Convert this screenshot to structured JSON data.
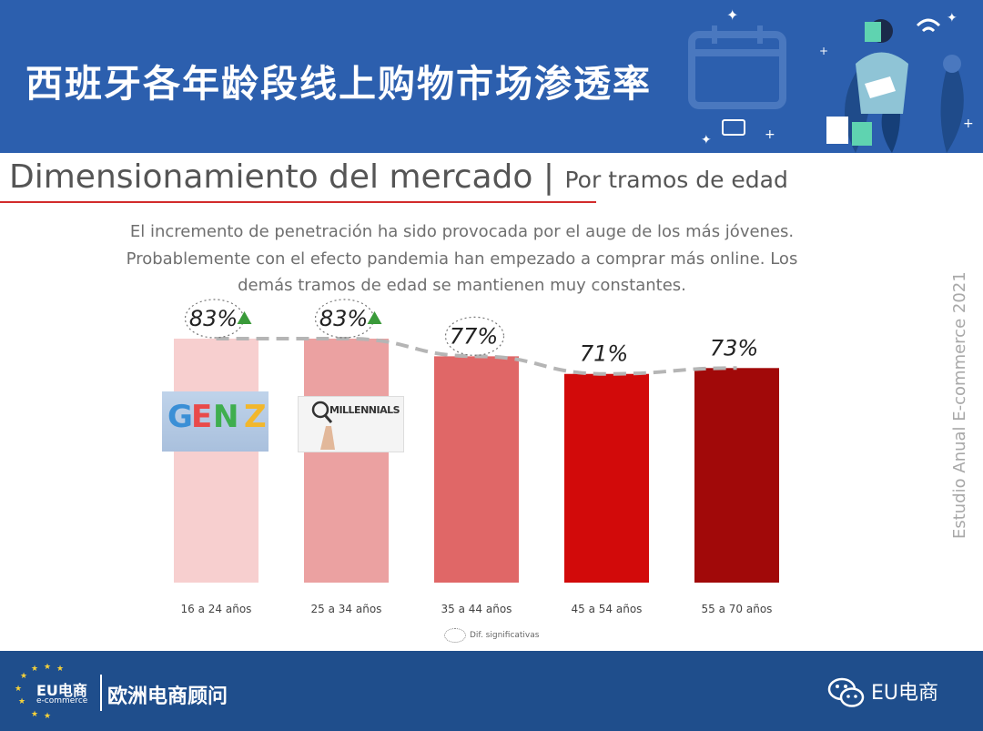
{
  "header": {
    "title": "西班牙各年龄段线上购物市场渗透率"
  },
  "section": {
    "title": "Dimensionamiento del mercado",
    "separator": "|",
    "subtitle": "Por tramos de edad"
  },
  "description": {
    "lines": [
      "El incremento de penetración ha sido provocada por el auge de los más jóvenes.",
      "Probablemente con el efecto pandemia han empezado a comprar más online. Los",
      "demás tramos de edad se mantienen muy constantes."
    ]
  },
  "side_source": "Estudio Anual E-commerce  2021",
  "images": {
    "genz_text": "GEN Z",
    "millennials_text": "MILLENNIALS"
  },
  "legend": {
    "label": "Dif. significativas"
  },
  "colors": {
    "banner": "#2c5fae",
    "footer": "#1f4e8c",
    "accent_red": "#d22b2b",
    "trend_line": "#b5b5b5",
    "increase_marker": "#3a9a3a"
  },
  "chart_data": {
    "type": "bar",
    "categories": [
      "16 a 24 años",
      "25 a 34 años",
      "35 a 44 años",
      "45 a 54 años",
      "55 a 70 años"
    ],
    "values": [
      83,
      83,
      77,
      71,
      73
    ],
    "value_labels": [
      "83%",
      "83%",
      "77%",
      "71%",
      "73%"
    ],
    "bar_colors": [
      "#f7cfcf",
      "#eba1a1",
      "#e06767",
      "#d20a0a",
      "#a10909"
    ],
    "significant": [
      true,
      true,
      true,
      false,
      false
    ],
    "increase": [
      true,
      true,
      false,
      false,
      false
    ],
    "trend_line": true,
    "title": "",
    "xlabel": "",
    "ylabel": "",
    "ylim": [
      0,
      83
    ]
  },
  "footer": {
    "logo_text": "EU电商",
    "logo_subtext": "e-commerce",
    "brand": "欧洲电商顾问",
    "account": "EU电商"
  }
}
